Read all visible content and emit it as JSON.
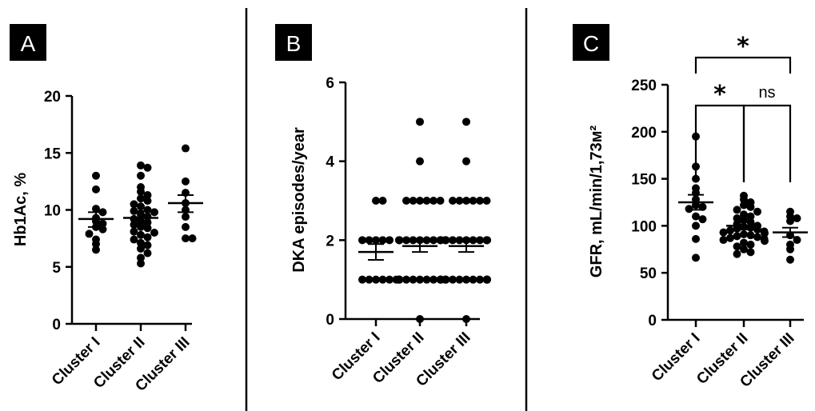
{
  "chart_data": [
    {
      "type": "scatter",
      "panel_label": "A",
      "ylabel": "Hb1Ac, %",
      "ylim": [
        0,
        20
      ],
      "yticks": [
        0,
        5,
        10,
        15,
        20
      ],
      "categories": [
        "Cluster I",
        "Cluster II",
        "Cluster III"
      ],
      "series": [
        {
          "category": "Cluster I",
          "values": [
            13.0,
            11.8,
            10.1,
            9.8,
            9.3,
            9.0,
            8.8,
            8.5,
            8.3,
            7.9,
            7.4,
            7.0,
            6.5
          ],
          "mean": 9.2,
          "sem_low": 8.5,
          "sem_high": 9.8
        },
        {
          "category": "Cluster II",
          "values": [
            13.9,
            13.7,
            13.0,
            12.0,
            11.6,
            11.3,
            11.0,
            10.8,
            10.5,
            10.3,
            10.0,
            9.9,
            9.8,
            9.6,
            9.4,
            9.2,
            9.0,
            8.9,
            8.7,
            8.5,
            8.4,
            8.1,
            8.0,
            7.8,
            7.6,
            7.4,
            7.1,
            6.9,
            6.6,
            6.2,
            5.8,
            5.3
          ],
          "mean": 9.3,
          "sem_low": 8.7,
          "sem_high": 9.9
        },
        {
          "category": "Cluster III",
          "values": [
            15.4,
            12.5,
            11.5,
            10.6,
            10.0,
            9.4,
            8.5,
            7.5,
            7.5
          ],
          "mean": 10.6,
          "sem_low": 9.8,
          "sem_high": 11.3
        }
      ]
    },
    {
      "type": "scatter",
      "panel_label": "B",
      "ylabel": "DKA episodes/year",
      "ylim": [
        0,
        6
      ],
      "yticks": [
        0,
        2,
        4,
        6
      ],
      "categories": [
        "Cluster I",
        "Cluster II",
        "Cluster III"
      ],
      "series": [
        {
          "category": "Cluster I",
          "values": [
            3,
            3,
            2,
            2,
            2,
            2,
            2,
            1,
            1,
            1,
            1,
            1,
            1
          ],
          "mean": 1.7,
          "sem_low": 1.5,
          "sem_high": 1.9
        },
        {
          "category": "Cluster II",
          "values": [
            5,
            4,
            3,
            3,
            3,
            3,
            3,
            3,
            2,
            2,
            2,
            2,
            2,
            2,
            2,
            2,
            2,
            2,
            2,
            1,
            1,
            1,
            1,
            1,
            1,
            1,
            1,
            1,
            1,
            1,
            1,
            0
          ],
          "mean": 1.85,
          "sem_low": 1.7,
          "sem_high": 2.0
        },
        {
          "category": "Cluster III",
          "values": [
            5,
            4,
            3,
            3,
            3,
            3,
            3,
            3,
            2,
            2,
            2,
            2,
            2,
            2,
            2,
            2,
            2,
            2,
            2,
            1,
            1,
            1,
            1,
            1,
            1,
            1,
            1,
            1,
            1,
            1,
            1,
            0
          ],
          "mean": 1.85,
          "sem_low": 1.7,
          "sem_high": 2.0
        }
      ]
    },
    {
      "type": "scatter",
      "panel_label": "C",
      "ylabel": "GFR, mL/min/1,73м²",
      "ylim": [
        0,
        250
      ],
      "yticks": [
        0,
        50,
        100,
        150,
        200,
        250
      ],
      "categories": [
        "Cluster I",
        "Cluster II",
        "Cluster III"
      ],
      "series": [
        {
          "category": "Cluster I",
          "values": [
            195,
            163,
            150,
            140,
            135,
            128,
            122,
            120,
            118,
            110,
            107,
            100,
            86,
            66
          ],
          "mean": 125,
          "sem_low": 117,
          "sem_high": 133
        },
        {
          "category": "Cluster II",
          "values": [
            132,
            128,
            125,
            122,
            120,
            117,
            115,
            112,
            110,
            108,
            106,
            104,
            102,
            100,
            99,
            98,
            97,
            96,
            95,
            94,
            93,
            92,
            91,
            90,
            89,
            88,
            87,
            86,
            85,
            84,
            82,
            80,
            78,
            75,
            72,
            70
          ],
          "mean": 100,
          "sem_low": 96,
          "sem_high": 104
        },
        {
          "category": "Cluster III",
          "values": [
            115,
            110,
            108,
            105,
            90,
            85,
            80,
            75,
            64
          ],
          "mean": 93,
          "sem_low": 88,
          "sem_high": 98
        }
      ],
      "significance": [
        {
          "from": "Cluster I",
          "to": "Cluster II",
          "label": "*"
        },
        {
          "from": "Cluster II",
          "to": "Cluster III",
          "label": "ns"
        },
        {
          "from": "Cluster I",
          "to": "Cluster III",
          "label": "*"
        }
      ]
    }
  ]
}
